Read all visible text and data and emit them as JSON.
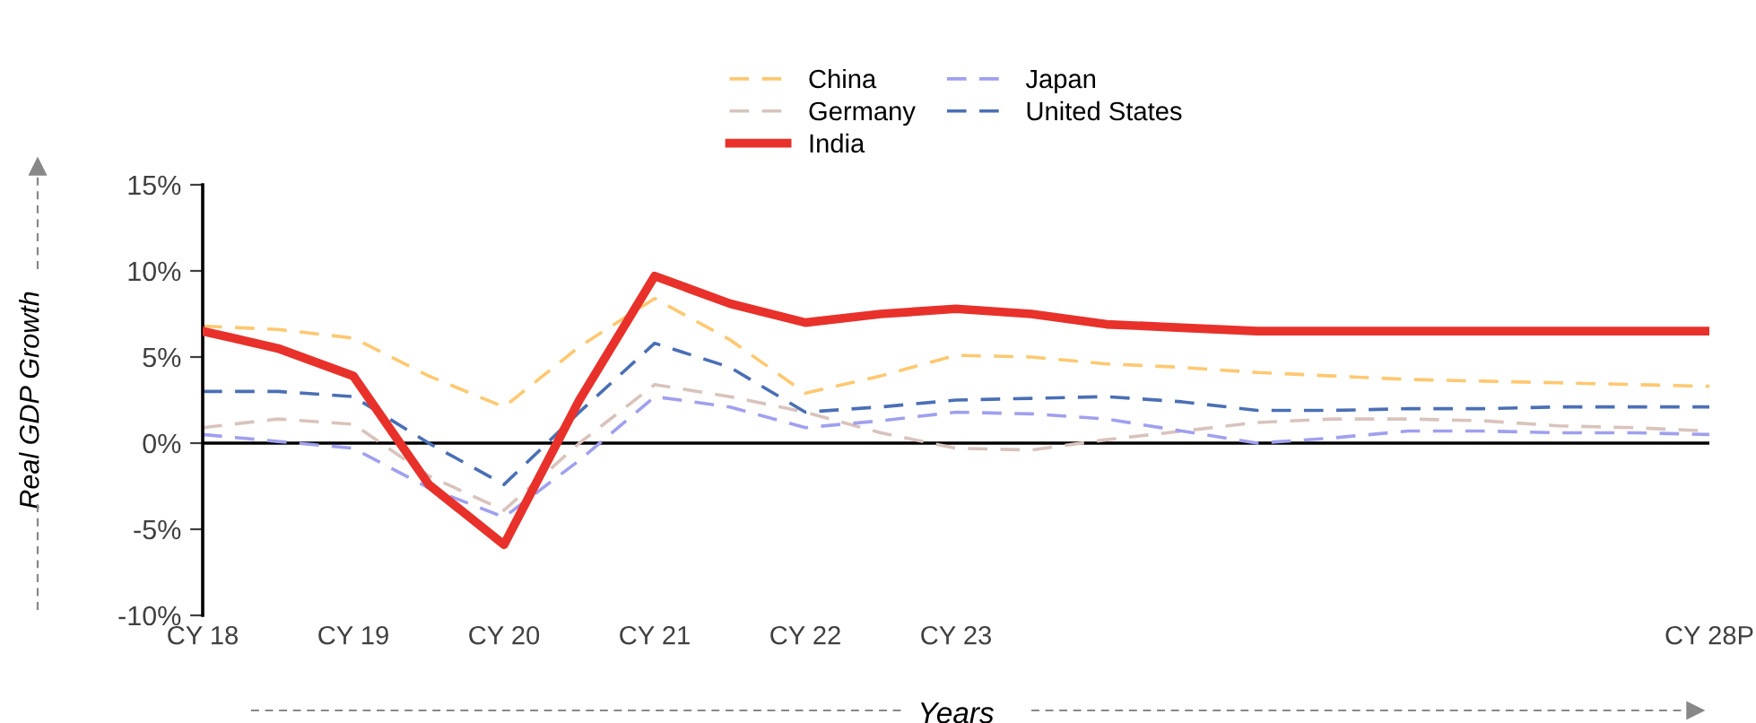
{
  "chart_data": {
    "type": "line",
    "xlabel": "Years",
    "ylabel": "Real GDP Growth",
    "ylim": [
      -10,
      15
    ],
    "yticks": [
      {
        "value": -10,
        "label": "-10%"
      },
      {
        "value": -5,
        "label": "-5%"
      },
      {
        "value": 0,
        "label": "0%"
      },
      {
        "value": 5,
        "label": "5%"
      },
      {
        "value": 10,
        "label": "10%"
      },
      {
        "value": 15,
        "label": "15%"
      }
    ],
    "legend": "top",
    "grid": false,
    "marker": "none",
    "ref_lines": [
      {
        "axis": "y",
        "value": 0,
        "color": "#000000"
      }
    ],
    "categories": [
      "CY 18",
      null,
      "CY 19",
      null,
      "CY 20",
      null,
      "CY 21",
      null,
      "CY 22",
      null,
      "CY 23",
      null,
      null,
      null,
      null,
      null,
      null,
      null,
      null,
      null,
      "CY 28P"
    ],
    "series": [
      {
        "name": "China",
        "color": "#ffc870",
        "line_style": "dashed",
        "values": [
          6.8,
          6.6,
          6.1,
          3.9,
          2.1,
          5.6,
          8.4,
          6.0,
          2.9,
          3.9,
          5.1,
          5.0,
          4.6,
          4.4,
          4.1,
          3.9,
          3.7,
          3.6,
          3.5,
          3.4,
          3.3
        ]
      },
      {
        "name": "Germany",
        "color": "#d9c3bc",
        "line_style": "dashed",
        "values": [
          0.9,
          1.4,
          1.1,
          -1.9,
          -3.9,
          0.0,
          3.4,
          2.7,
          1.8,
          0.6,
          -0.3,
          -0.4,
          0.2,
          0.7,
          1.2,
          1.4,
          1.4,
          1.3,
          1.0,
          0.9,
          0.7
        ]
      },
      {
        "name": "India",
        "color": "#e8312a",
        "line_style": "solid",
        "values": [
          6.5,
          5.5,
          3.9,
          -2.4,
          -5.9,
          2.5,
          9.7,
          8.1,
          7.0,
          7.5,
          7.8,
          7.5,
          6.9,
          6.7,
          6.5,
          6.5,
          6.5,
          6.5,
          6.5,
          6.5,
          6.5
        ]
      },
      {
        "name": "Japan",
        "color": "#a0a0f0",
        "line_style": "dashed",
        "values": [
          0.5,
          0.1,
          -0.3,
          -2.6,
          -4.3,
          -1.0,
          2.7,
          2.1,
          0.9,
          1.3,
          1.8,
          1.7,
          1.4,
          0.7,
          0.0,
          0.3,
          0.7,
          0.7,
          0.6,
          0.6,
          0.5
        ]
      },
      {
        "name": "United States",
        "color": "#4a6fb5",
        "line_style": "dashed",
        "values": [
          3.0,
          3.0,
          2.7,
          0.0,
          -2.4,
          1.8,
          5.8,
          4.4,
          1.8,
          2.1,
          2.5,
          2.6,
          2.7,
          2.4,
          1.9,
          1.9,
          2.0,
          2.0,
          2.1,
          2.1,
          2.1
        ]
      }
    ]
  }
}
